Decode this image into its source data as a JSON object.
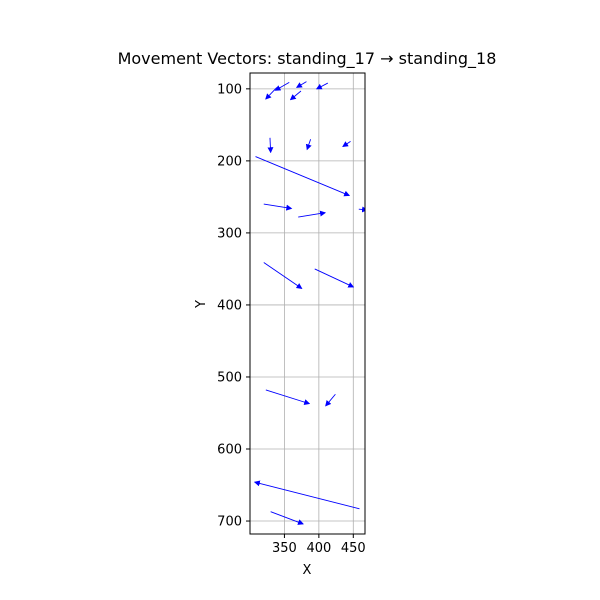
{
  "chart_data": {
    "type": "quiver",
    "title": "Movement Vectors: standing_17 → standing_18",
    "xlabel": "X",
    "ylabel": "Y",
    "xlim": [
      300,
      467
    ],
    "ylim": [
      718,
      78
    ],
    "y_inverted": true,
    "grid": true,
    "xticks": [
      350,
      400,
      450
    ],
    "yticks": [
      100,
      200,
      300,
      400,
      500,
      600,
      700
    ],
    "arrow_color": "#0000ff",
    "vectors": [
      {
        "x0": 339,
        "y0": 98,
        "x1": 323,
        "y1": 114
      },
      {
        "x0": 357,
        "y0": 91,
        "x1": 337,
        "y1": 102
      },
      {
        "x0": 382,
        "y0": 90,
        "x1": 368,
        "y1": 98
      },
      {
        "x0": 413,
        "y0": 92,
        "x1": 397,
        "y1": 100
      },
      {
        "x0": 374,
        "y0": 103,
        "x1": 359,
        "y1": 115
      },
      {
        "x0": 329,
        "y0": 168,
        "x1": 330,
        "y1": 188
      },
      {
        "x0": 388,
        "y0": 170,
        "x1": 383,
        "y1": 184
      },
      {
        "x0": 446,
        "y0": 173,
        "x1": 435,
        "y1": 180
      },
      {
        "x0": 308,
        "y0": 194,
        "x1": 444,
        "y1": 248
      },
      {
        "x0": 320,
        "y0": 260,
        "x1": 360,
        "y1": 266
      },
      {
        "x0": 370,
        "y0": 278,
        "x1": 409,
        "y1": 272
      },
      {
        "x0": 458,
        "y0": 267,
        "x1": 470,
        "y1": 268
      },
      {
        "x0": 320,
        "y0": 341,
        "x1": 375,
        "y1": 377
      },
      {
        "x0": 394,
        "y0": 350,
        "x1": 450,
        "y1": 375
      },
      {
        "x0": 323,
        "y0": 518,
        "x1": 386,
        "y1": 537
      },
      {
        "x0": 424,
        "y0": 524,
        "x1": 410,
        "y1": 540
      },
      {
        "x0": 459,
        "y0": 683,
        "x1": 307,
        "y1": 646
      },
      {
        "x0": 330,
        "y0": 687,
        "x1": 377,
        "y1": 704
      }
    ]
  }
}
